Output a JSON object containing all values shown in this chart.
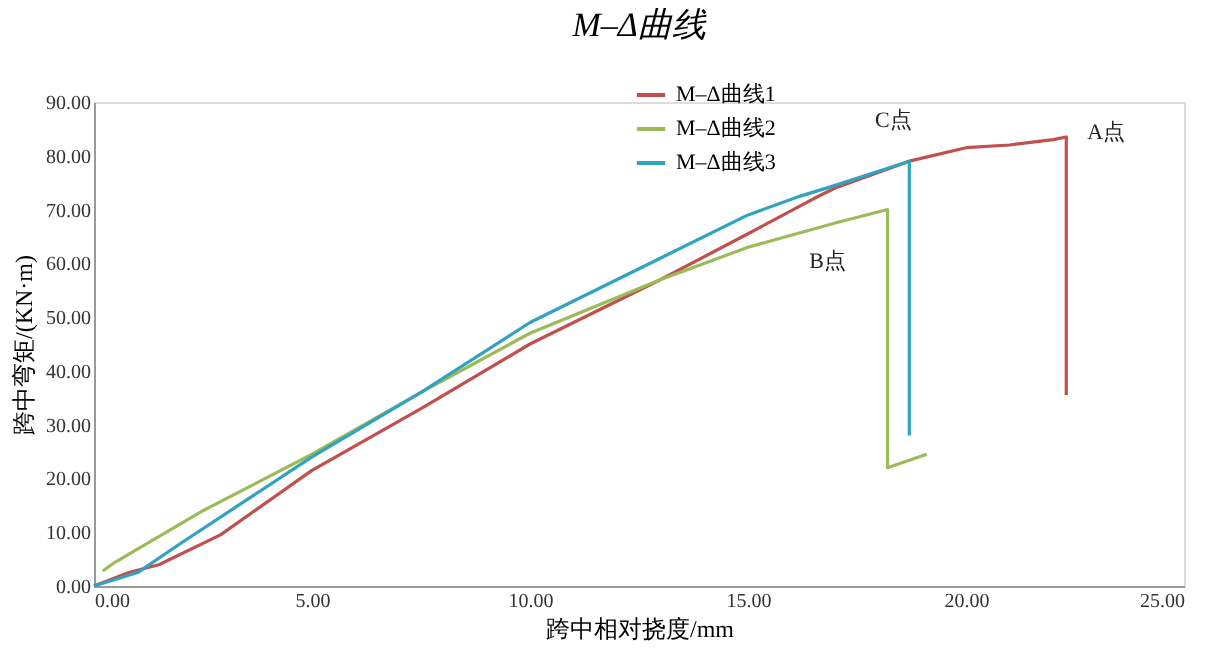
{
  "chart_data": {
    "type": "line",
    "title": "M–Δ曲线",
    "xlabel": "跨中相对挠度/mm",
    "ylabel": "跨中弯矩/(KN·m)",
    "xlim": [
      0,
      25
    ],
    "xticks": [
      {
        "value": 0,
        "label": "0.00"
      },
      {
        "value": 5,
        "label": "5.00"
      },
      {
        "value": 10,
        "label": "10.00"
      },
      {
        "value": 15,
        "label": "15.00"
      },
      {
        "value": 20,
        "label": "20.00"
      },
      {
        "value": 25,
        "label": "25.00"
      }
    ],
    "ylim": [
      0,
      90
    ],
    "yticks": [
      {
        "value": 0,
        "label": "0.00"
      },
      {
        "value": 10,
        "label": "10.00"
      },
      {
        "value": 20,
        "label": "20.00"
      },
      {
        "value": 30,
        "label": "30.00"
      },
      {
        "value": 40,
        "label": "40.00"
      },
      {
        "value": 50,
        "label": "50.00"
      },
      {
        "value": 60,
        "label": "60.00"
      },
      {
        "value": 70,
        "label": "70.00"
      },
      {
        "value": 80,
        "label": "80.00"
      },
      {
        "value": 90,
        "label": "90.00"
      }
    ],
    "grid": false,
    "legend": "top right",
    "marker": "none",
    "line_style": "solid",
    "series": [
      {
        "name": "M–Δ曲线1",
        "color": "#c0504d",
        "x": [
          0,
          0.8,
          1.5,
          2.9,
          5,
          7.5,
          10,
          13,
          15,
          16.5,
          17,
          18.7,
          20,
          21,
          22,
          22.3,
          22.3
        ],
        "values": [
          0,
          2.5,
          4,
          9.5,
          21.5,
          33,
          45,
          57,
          65.5,
          72,
          74,
          79,
          81.5,
          82,
          83,
          83.5,
          35.5
        ]
      },
      {
        "name": "M–Δ曲线2",
        "color": "#9bbb59",
        "x": [
          0.2,
          0.5,
          2.5,
          5,
          7.5,
          10,
          13,
          15,
          17,
          18.2,
          18.2,
          19.1
        ],
        "values": [
          2.8,
          4.5,
          14,
          24.5,
          36,
          47,
          57,
          63,
          67.5,
          70,
          22,
          24.5
        ]
      },
      {
        "name": "M–Δ曲线3",
        "color": "#31a2c0",
        "x": [
          0,
          1,
          2,
          5,
          7.5,
          10,
          13,
          15,
          16.2,
          17,
          18.7,
          18.7
        ],
        "values": [
          0,
          2.5,
          8,
          24,
          36,
          49,
          61,
          69,
          72.5,
          74.5,
          79,
          28
        ]
      }
    ],
    "annotations": [
      {
        "text": "A点",
        "x": 22.3,
        "y": 83.5
      },
      {
        "text": "B点",
        "x": 18.2,
        "y": 70
      },
      {
        "text": "C点",
        "x": 18.7,
        "y": 79
      }
    ]
  }
}
